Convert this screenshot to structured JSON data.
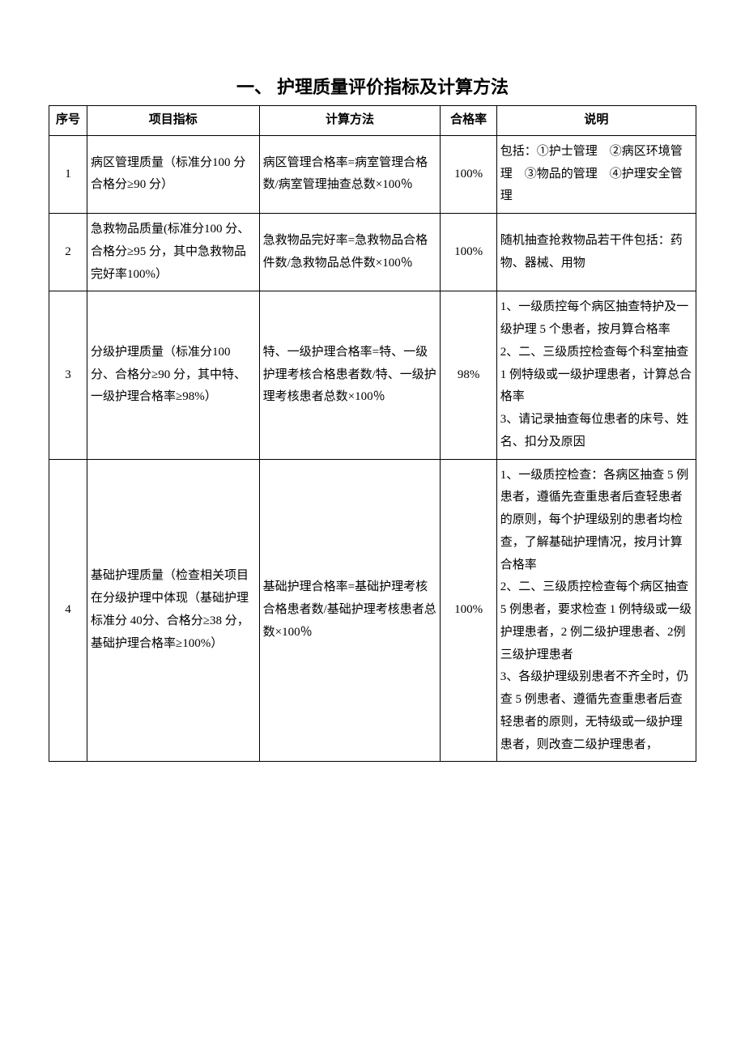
{
  "title": "一、 护理质量评价指标及计算方法",
  "headers": {
    "seq": "序号",
    "indicator": "项目指标",
    "calc": "计算方法",
    "rate": "合格率",
    "desc": "说明"
  },
  "rows": [
    {
      "seq": "1",
      "indicator": "病区管理质量（标准分100 分合格分≥90 分）",
      "calc": "病区管理合格率=病室管理合格数/病室管理抽查总数×100％",
      "rate": "100%",
      "desc": "包括：①护士管理　②病区环境管理　③物品的管理　④护理安全管理"
    },
    {
      "seq": "2",
      "indicator": "急救物品质量(标准分100 分、合格分≥95 分，其中急救物品完好率100%）",
      "calc": "急救物品完好率=急救物品合格件数/急救物品总件数×100％",
      "rate": "100%",
      "desc": "随机抽查抢救物品若干件包括：药物、器械、用物"
    },
    {
      "seq": "3",
      "indicator": "分级护理质量（标准分100 分、合格分≥90 分，其中特、一级护理合格率≥98%）",
      "calc": "特、一级护理合格率=特、一级护理考核合格患者数/特、一级护理考核患者总数×100％",
      "rate": "98%",
      "desc": "1、一级质控每个病区抽查特护及一级护理 5 个患者，按月算合格率\n2、二、三级质控检查每个科室抽查 1 例特级或一级护理患者，计算总合格率\n3、请记录抽查每位患者的床号、姓名、扣分及原因"
    },
    {
      "seq": "4",
      "indicator": "基础护理质量（检查相关项目在分级护理中体现（基础护理标准分 40分、合格分≥38 分，基础护理合格率≥100%）",
      "calc": "基础护理合格率=基础护理考核合格患者数/基础护理考核患者总数×100％",
      "rate": "100%",
      "desc": "1、一级质控检查：各病区抽查 5 例患者，遵循先查重患者后查轻患者的原则，每个护理级别的患者均检查，了解基础护理情况，按月计算合格率\n2、二、三级质控检查每个病区抽查 5 例患者，要求检查 1 例特级或一级护理患者，2 例二级护理患者、2例三级护理患者\n3、各级护理级别患者不齐全时，仍查 5 例患者、遵循先查重患者后查轻患者的原则，无特级或一级护理患者，则改查二级护理患者，"
    }
  ]
}
